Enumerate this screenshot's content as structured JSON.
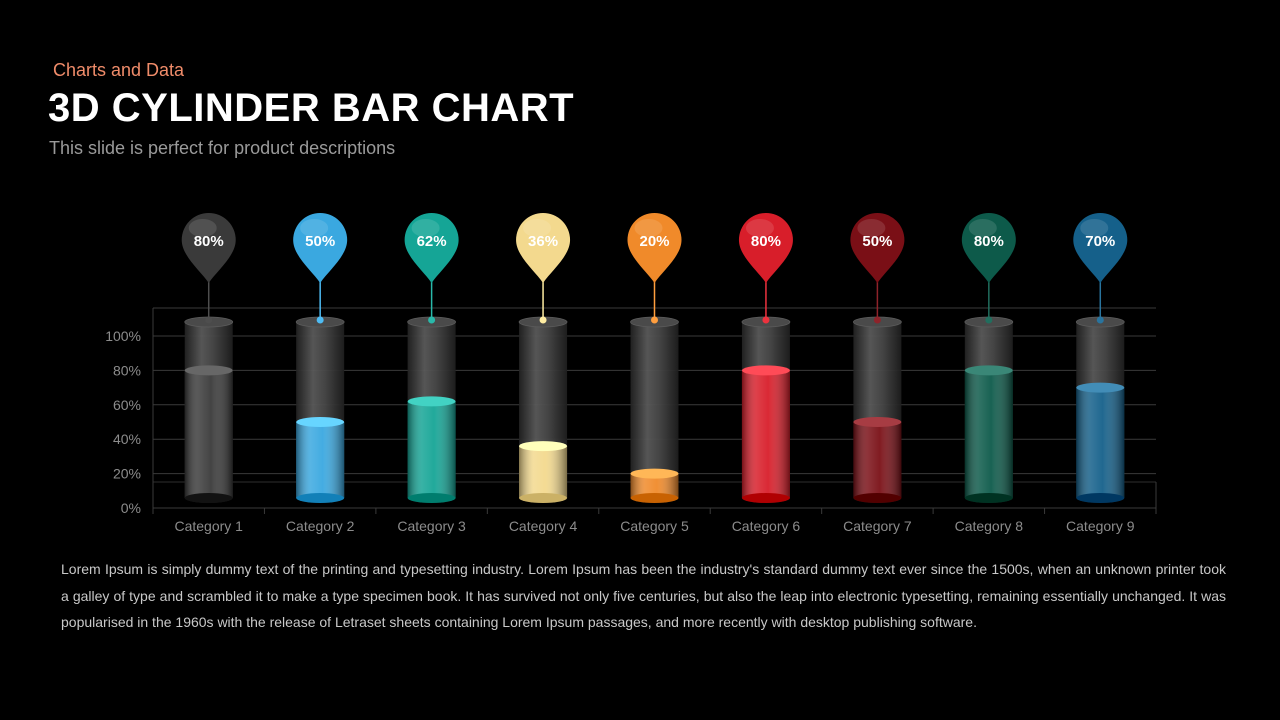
{
  "header": {
    "eyebrow": "Charts and Data",
    "title": "3D CYLINDER BAR CHART",
    "subtitle": "This slide is perfect for product descriptions"
  },
  "chart_data": {
    "type": "bar",
    "style": "3d-cylinder",
    "categories": [
      "Category 1",
      "Category 2",
      "Category 3",
      "Category 4",
      "Category 5",
      "Category 6",
      "Category 7",
      "Category 8",
      "Category 9"
    ],
    "values": [
      80,
      50,
      62,
      36,
      20,
      80,
      50,
      80,
      70
    ],
    "value_labels": [
      "80%",
      "50%",
      "62%",
      "36%",
      "20%",
      "80%",
      "50%",
      "80%",
      "70%"
    ],
    "colors": [
      "#3a3a3a",
      "#3aa8e0",
      "#15a596",
      "#f3d98e",
      "#f08a2a",
      "#d81e2a",
      "#7a0f16",
      "#0d5a4a",
      "#15608a"
    ],
    "yticks": [
      "0%",
      "20%",
      "40%",
      "60%",
      "80%",
      "100%"
    ],
    "ylim": [
      0,
      100
    ],
    "grid": true,
    "legend": false
  },
  "description": "Lorem Ipsum is simply dummy text of the printing and typesetting industry. Lorem Ipsum has been the industry's standard dummy text ever since the 1500s, when an unknown printer took a galley of type and scrambled it to make a type specimen book. It has survived not only five centuries, but also the leap into electronic typesetting, remaining essentially unchanged. It was popularised in the 1960s with the release of Letraset sheets containing Lorem Ipsum passages, and more recently with desktop publishing software."
}
